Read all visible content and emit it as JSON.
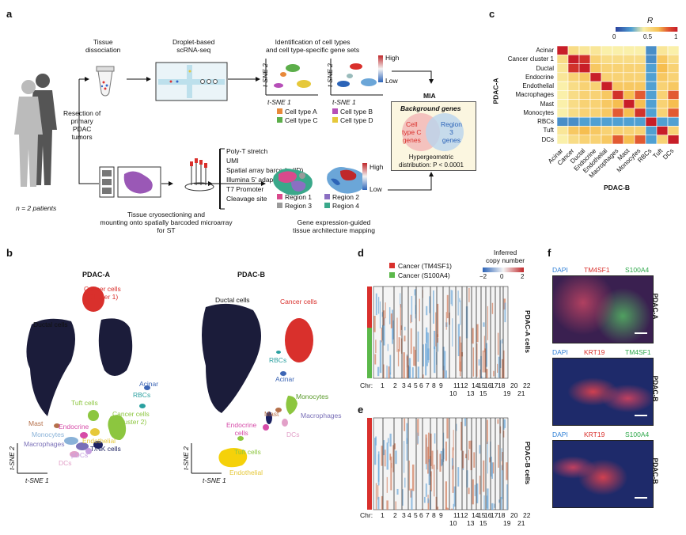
{
  "panel_a": {
    "letter": "a",
    "tissue_dissociation": "Tissue\ndissociation",
    "droplet": "Droplet-based\nscRNA-seq",
    "identification": "Identification of cell types\nand cell type-specific gene sets",
    "resection": "Resection of\nprimary\nPDAC\ntumors",
    "patients": "n = 2 patients",
    "tsne1": "t-SNE 1",
    "tsne2": "t-SNE 2",
    "high": "High",
    "low": "Low",
    "cell_types": [
      "Cell type A",
      "Cell type B",
      "Cell type C",
      "Cell type D"
    ],
    "cell_type_colors": [
      "#e8893a",
      "#b64fb8",
      "#5cae4a",
      "#e6c83a"
    ],
    "barcode_items": [
      "Poly-T stretch",
      "UMI",
      "Spatial array barcode (ID)",
      "Illumina 5' adapter",
      "T7 Promoter",
      "Cleavage site"
    ],
    "cryosection": "Tissue cryosectioning and\nmounting onto spatially barcoded microarray\nfor ST",
    "regions": [
      "Region 1",
      "Region 2",
      "Region 3",
      "Region 4"
    ],
    "region_colors": [
      "#d94a8c",
      "#8b6fc2",
      "#9a9a9a",
      "#3aa88a"
    ],
    "gene_guided": "Gene expression-guided\ntissue architecture mapping",
    "mia": "MIA",
    "background_genes": "Background genes",
    "venn_left": "Cell\ntype C\ngenes",
    "venn_right": "Region\n3\ngenes",
    "hypergeo": "Hypergeometric\ndistribution: P < 0.0001"
  },
  "panel_c": {
    "letter": "c",
    "r_label": "R",
    "scale_ticks": [
      "0",
      "0.5",
      "1"
    ],
    "row_axis": "PDAC-A",
    "col_axis": "PDAC-B",
    "rows": [
      "Acinar",
      "Cancer cluster 1",
      "Ductal",
      "Endocrine",
      "Endothelial",
      "Macrophages",
      "Mast",
      "Monocytes",
      "RBCs",
      "Tuft",
      "DCs"
    ],
    "cols": [
      "Acinar",
      "Cancer",
      "Ductal",
      "Endocrine",
      "Endothelial",
      "Macrophages",
      "Mast",
      "Monocytes",
      "RBCs",
      "Tuft",
      "DCs"
    ],
    "values": [
      [
        1.0,
        0.55,
        0.5,
        0.5,
        0.45,
        0.45,
        0.45,
        0.45,
        0.2,
        0.5,
        0.45
      ],
      [
        0.55,
        1.0,
        0.95,
        0.6,
        0.55,
        0.55,
        0.55,
        0.55,
        0.2,
        0.65,
        0.55
      ],
      [
        0.5,
        0.95,
        1.0,
        0.65,
        0.6,
        0.6,
        0.6,
        0.6,
        0.25,
        0.7,
        0.6
      ],
      [
        0.5,
        0.6,
        0.65,
        1.0,
        0.6,
        0.6,
        0.6,
        0.6,
        0.25,
        0.65,
        0.6
      ],
      [
        0.45,
        0.55,
        0.6,
        0.6,
        1.0,
        0.65,
        0.65,
        0.65,
        0.25,
        0.6,
        0.65
      ],
      [
        0.45,
        0.55,
        0.6,
        0.6,
        0.65,
        0.95,
        0.7,
        0.85,
        0.25,
        0.6,
        0.85
      ],
      [
        0.45,
        0.55,
        0.6,
        0.6,
        0.65,
        0.7,
        1.0,
        0.7,
        0.25,
        0.6,
        0.7
      ],
      [
        0.45,
        0.55,
        0.6,
        0.6,
        0.65,
        0.85,
        0.7,
        0.95,
        0.25,
        0.6,
        0.85
      ],
      [
        0.2,
        0.2,
        0.25,
        0.25,
        0.25,
        0.25,
        0.25,
        0.25,
        1.0,
        0.25,
        0.25
      ],
      [
        0.5,
        0.65,
        0.7,
        0.65,
        0.6,
        0.6,
        0.6,
        0.6,
        0.25,
        1.0,
        0.6
      ],
      [
        0.45,
        0.55,
        0.6,
        0.6,
        0.65,
        0.85,
        0.7,
        0.85,
        0.25,
        0.6,
        1.0
      ]
    ]
  },
  "panel_b": {
    "letter": "b",
    "title_a": "PDAC-A",
    "title_b": "PDAC-B",
    "tsne1": "t-SNE 1",
    "tsne2": "t-SNE 2",
    "labels_a": [
      "Cancer cells\n(Cluster 1)",
      "Ductal cells",
      "Acinar",
      "RBCs",
      "Tuft cells",
      "Cancer cells\n(Cluster 2)",
      "Mast",
      "Endocrine",
      "Endothelial",
      "Monocytes",
      "Macrophages",
      "T/NK cells",
      "pDCs",
      "DCs"
    ],
    "labels_b": [
      "Ductal cells",
      "Cancer cells",
      "RBCs",
      "Acinar",
      "Monocytes",
      "Macrophages",
      "Mast",
      "Endocrine\ncells",
      "DCs",
      "Tuft cells",
      "Endothelial"
    ]
  },
  "panel_d": {
    "letter": "d",
    "legend": [
      "Cancer (TM4SF1)",
      "Cancer (S100A4)"
    ],
    "legend_colors": [
      "#d9302c",
      "#5bb84a"
    ],
    "scale_title": "Inferred\ncopy number",
    "scale_ticks": [
      "−2",
      "0",
      "2"
    ],
    "side_label": "PDAC-A cells",
    "chr_label": "Chr:",
    "chr_top": [
      "1",
      "2",
      "3",
      "4",
      "5",
      "6",
      "7",
      "8",
      "9",
      "11",
      "12",
      "14",
      "15",
      "16",
      "17",
      "18",
      "20",
      "22"
    ],
    "chr_bottom": [
      "10",
      "13",
      "15",
      "19",
      "21"
    ]
  },
  "panel_e": {
    "letter": "e",
    "side_label": "PDAC-B cells",
    "chr_label": "Chr:",
    "chr_top": [
      "1",
      "2",
      "3",
      "4",
      "5",
      "6",
      "7",
      "8",
      "9",
      "11",
      "12",
      "14",
      "15",
      "16",
      "17",
      "18",
      "20",
      "22"
    ],
    "chr_bottom": [
      "10",
      "13",
      "15",
      "19",
      "21"
    ]
  },
  "panel_f": {
    "letter": "f",
    "rows": [
      {
        "stains": [
          "DAPI",
          "TM4SF1",
          "S100A4"
        ],
        "sample": "PDAC-A"
      },
      {
        "stains": [
          "DAPI",
          "KRT19",
          "TM4SF1"
        ],
        "sample": "PDAC-B"
      },
      {
        "stains": [
          "DAPI",
          "KRT19",
          "S100A4"
        ],
        "sample": "PDAC-B"
      }
    ],
    "stain_colors": [
      "#2d7fd6",
      "#d9302c",
      "#2ea84a"
    ]
  }
}
